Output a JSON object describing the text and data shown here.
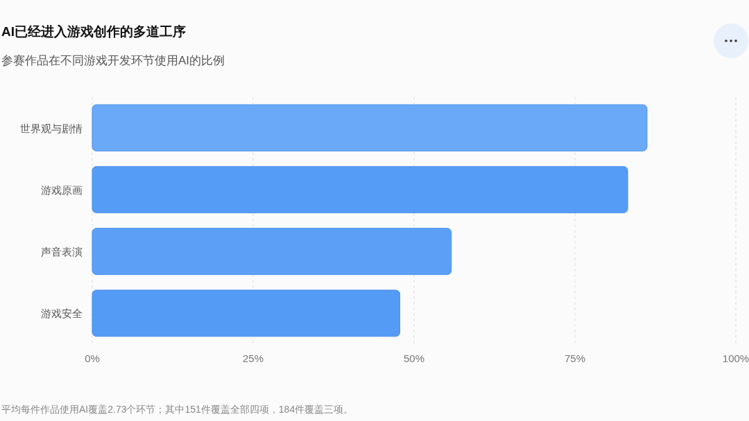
{
  "chart_data": {
    "type": "bar",
    "orientation": "horizontal",
    "title": "AI已经进入游戏创作的多道工序",
    "subtitle": "参赛作品在不同游戏开发环节使用AI的比例",
    "categories": [
      "世界观与剧情",
      "游戏原画",
      "声音表演",
      "游戏安全"
    ],
    "values": [
      86.2,
      83.2,
      55.8,
      47.8
    ],
    "colors": [
      "#6aa9f8",
      "#559cf6",
      "#5ba0f6",
      "#539bf5"
    ],
    "xlim": [
      0,
      100
    ],
    "xticks": [
      {
        "value": 0,
        "label": "0%"
      },
      {
        "value": 25,
        "label": "25%"
      },
      {
        "value": 50,
        "label": "50%"
      },
      {
        "value": 75,
        "label": "75%"
      },
      {
        "value": 100,
        "label": "100%"
      }
    ],
    "grid": "x",
    "annotations": [
      "平均每件作品使用AI覆盖2.73个环节；其中151件覆盖全部四项，184件覆盖三项。"
    ]
  }
}
